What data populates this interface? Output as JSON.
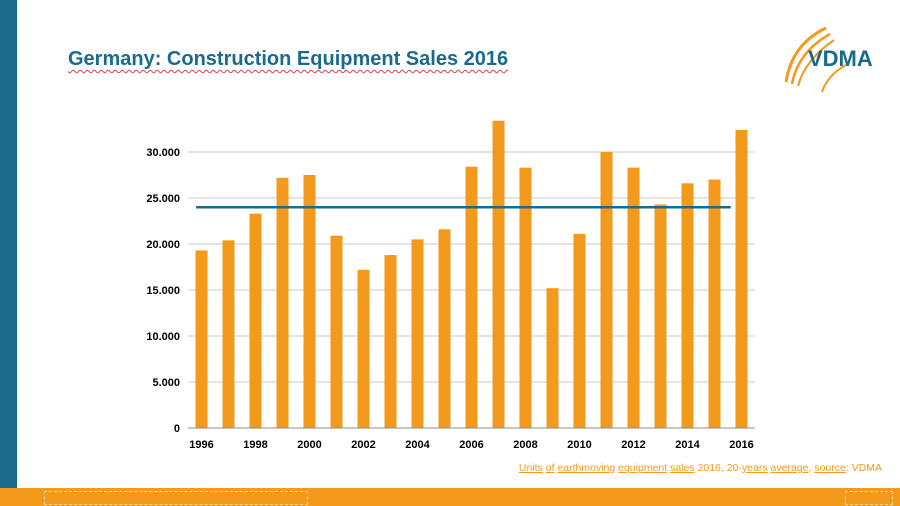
{
  "slide": {
    "title": "Germany: Construction Equipment Sales 2016",
    "logo_text": "VDMA",
    "caption_parts": [
      "Units",
      " ",
      "of",
      " ",
      "earthmoving",
      " ",
      "equipment",
      " ",
      "sales",
      " 2016, 20-",
      "years",
      " ",
      "average",
      ", ",
      "source",
      ": VDMA"
    ]
  },
  "colors": {
    "accent_blue": "#1b6a8c",
    "bar_orange": "#f39a1d"
  },
  "chart_data": {
    "type": "bar",
    "categories": [
      "1996",
      "1997",
      "1998",
      "1999",
      "2000",
      "2001",
      "2002",
      "2003",
      "2004",
      "2005",
      "2006",
      "2007",
      "2008",
      "2009",
      "2010",
      "2011",
      "2012",
      "2013",
      "2014",
      "2015",
      "2016"
    ],
    "values": [
      19300,
      20400,
      23300,
      27200,
      27500,
      20900,
      17200,
      18800,
      20500,
      21600,
      28400,
      33400,
      28300,
      15200,
      21100,
      30000,
      28300,
      24300,
      26600,
      27000,
      32400
    ],
    "x_tick_labels": [
      "1996",
      "1998",
      "2000",
      "2002",
      "2004",
      "2006",
      "2008",
      "2010",
      "2012",
      "2014",
      "2016"
    ],
    "y_tick_labels": [
      "0",
      "5.000",
      "10.000",
      "15.000",
      "20.000",
      "25.000",
      "30.000"
    ],
    "y_ticks": [
      0,
      5000,
      10000,
      15000,
      20000,
      25000,
      30000
    ],
    "ylim": [
      0,
      35000
    ],
    "reference_line": {
      "value": 24000,
      "color": "#1b6a8c"
    },
    "grid": true,
    "legend": "none"
  }
}
